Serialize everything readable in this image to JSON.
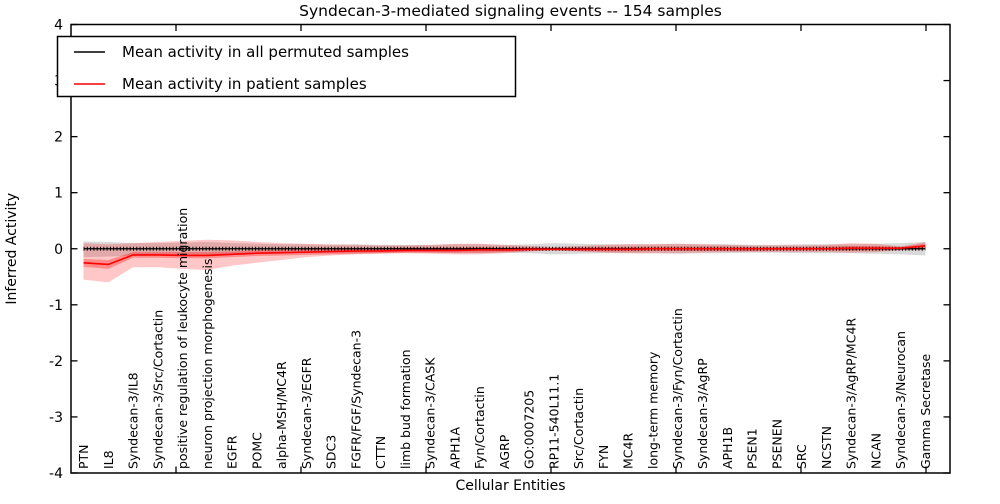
{
  "title": "Syndecan-3-mediated signaling events -- 154 samples",
  "xlabel": "Cellular Entities",
  "ylabel": "Inferred Activity",
  "legend": {
    "entries": [
      {
        "label": "Mean activity in all permuted samples",
        "color": "#000000"
      },
      {
        "label": "Mean activity in patient samples",
        "color": "#ff0000"
      }
    ]
  },
  "colors": {
    "permuted_line": "#000000",
    "patient_line": "#ff0000",
    "permuted_band": "rgba(0,0,0,0.15)",
    "patient_band_outer": "rgba(255,0,0,0.22)",
    "patient_band_inner": "rgba(255,0,0,0.30)",
    "axis": "#000000",
    "background": "#ffffff"
  },
  "chart_data": {
    "type": "line",
    "title": "Syndecan-3-mediated signaling events -- 154 samples",
    "xlabel": "Cellular Entities",
    "ylabel": "Inferred Activity",
    "ylim": [
      -4,
      4
    ],
    "yticks": [
      4,
      3,
      2,
      1,
      0,
      -1,
      -2,
      -3,
      -4
    ],
    "grid": false,
    "legend_position": "upper left",
    "categories": [
      "PTN",
      "IL8",
      "Syndecan-3/IL8",
      "Syndecan-3/Src/Cortactin",
      "positive regulation of leukocyte migration",
      "neuron projection morphogenesis",
      "EGFR",
      "POMC",
      "alpha-MSH/MC4R",
      "Syndecan-3/EGFR",
      "SDC3",
      "FGFR/FGF/Syndecan-3",
      "CTTN",
      "limb bud formation",
      "Syndecan-3/CASK",
      "APH1A",
      "Fyn/Cortactin",
      "AGRP",
      "GO:0007205",
      "RP11-540L11.1",
      "Src/Cortactin",
      "FYN",
      "MC4R",
      "long-term memory",
      "Syndecan-3/Fyn/Cortactin",
      "Syndecan-3/AgRP",
      "APH1B",
      "PSEN1",
      "PSENEN",
      "SRC",
      "NCSTN",
      "Syndecan-3/AgRP/MC4R",
      "NCAN",
      "Syndecan-3/Neurocan",
      "Gamma Secretase"
    ],
    "series": [
      {
        "name": "Mean activity in all permuted samples",
        "color": "#000000",
        "values": [
          0,
          0,
          0,
          0,
          0,
          0,
          0,
          0,
          0,
          0,
          0,
          0,
          0,
          0,
          0,
          0,
          0,
          0,
          0,
          0,
          0,
          0,
          0,
          0,
          0,
          0,
          0,
          0,
          0,
          0,
          0,
          0,
          0,
          0,
          0
        ]
      },
      {
        "name": "Mean activity in patient samples",
        "color": "#ff0000",
        "values": [
          -0.25,
          -0.28,
          -0.11,
          -0.11,
          -0.12,
          -0.12,
          -0.1,
          -0.08,
          -0.07,
          -0.06,
          -0.05,
          -0.04,
          -0.04,
          -0.03,
          -0.03,
          -0.03,
          -0.02,
          -0.02,
          -0.01,
          -0.01,
          -0.01,
          -0.01,
          -0.01,
          0,
          0,
          0,
          0,
          0,
          0,
          0,
          0,
          0.01,
          0.01,
          0.01,
          0.05
        ]
      }
    ],
    "bands": [
      {
        "name": "permuted-std-band",
        "color": "rgba(0,0,0,0.15)",
        "upper": [
          0.13,
          0.12,
          0.1,
          0.1,
          0.11,
          0.12,
          0.1,
          0.09,
          0.08,
          0.08,
          0.07,
          0.08,
          0.07,
          0.07,
          0.07,
          0.08,
          0.08,
          0.07,
          0.08,
          0.1,
          0.09,
          0.08,
          0.08,
          0.08,
          0.09,
          0.08,
          0.08,
          0.07,
          0.07,
          0.08,
          0.08,
          0.08,
          0.09,
          0.1,
          0.12
        ],
        "lower": [
          -0.15,
          -0.14,
          -0.12,
          -0.11,
          -0.11,
          -0.12,
          -0.1,
          -0.09,
          -0.08,
          -0.08,
          -0.07,
          -0.08,
          -0.07,
          -0.07,
          -0.07,
          -0.08,
          -0.08,
          -0.07,
          -0.08,
          -0.1,
          -0.09,
          -0.08,
          -0.08,
          -0.08,
          -0.09,
          -0.08,
          -0.08,
          -0.07,
          -0.07,
          -0.08,
          -0.08,
          -0.08,
          -0.09,
          -0.1,
          -0.12
        ]
      },
      {
        "name": "patient-std-band",
        "color": "rgba(255,0,0,0.22)",
        "upper": [
          0.1,
          0.08,
          0.1,
          0.12,
          0.14,
          0.16,
          0.15,
          0.12,
          0.1,
          0.09,
          0.08,
          0.07,
          0.06,
          0.06,
          0.07,
          0.09,
          0.09,
          0.07,
          0.05,
          0.03,
          0.05,
          0.07,
          0.08,
          0.08,
          0.09,
          0.08,
          0.07,
          0.06,
          0.06,
          0.06,
          0.07,
          0.1,
          0.09,
          0.04,
          0.12
        ],
        "lower": [
          -0.55,
          -0.6,
          -0.33,
          -0.33,
          -0.36,
          -0.38,
          -0.3,
          -0.25,
          -0.2,
          -0.15,
          -0.12,
          -0.1,
          -0.09,
          -0.08,
          -0.09,
          -0.1,
          -0.1,
          -0.08,
          -0.05,
          -0.03,
          -0.05,
          -0.07,
          -0.08,
          -0.08,
          -0.08,
          -0.07,
          -0.06,
          -0.06,
          -0.06,
          -0.06,
          -0.06,
          -0.07,
          -0.06,
          -0.03,
          -0.02
        ]
      },
      {
        "name": "patient-inner-band",
        "color": "rgba(255,0,0,0.30)",
        "upper": [
          -0.18,
          -0.2,
          -0.06,
          -0.06,
          -0.06,
          -0.06,
          -0.05,
          -0.03,
          -0.02,
          -0.01,
          0.0,
          0.01,
          0.01,
          0.02,
          0.02,
          0.02,
          0.03,
          0.02,
          0.02,
          0.01,
          0.02,
          0.03,
          0.03,
          0.04,
          0.04,
          0.04,
          0.04,
          0.03,
          0.03,
          0.03,
          0.04,
          0.05,
          0.05,
          0.03,
          0.09
        ],
        "lower": [
          -0.32,
          -0.36,
          -0.16,
          -0.16,
          -0.17,
          -0.17,
          -0.15,
          -0.13,
          -0.12,
          -0.11,
          -0.1,
          -0.09,
          -0.08,
          -0.07,
          -0.07,
          -0.07,
          -0.07,
          -0.06,
          -0.04,
          -0.03,
          -0.04,
          -0.05,
          -0.05,
          -0.04,
          -0.04,
          -0.04,
          -0.04,
          -0.04,
          -0.03,
          -0.03,
          -0.03,
          -0.03,
          -0.03,
          -0.02,
          0.01
        ]
      }
    ]
  }
}
